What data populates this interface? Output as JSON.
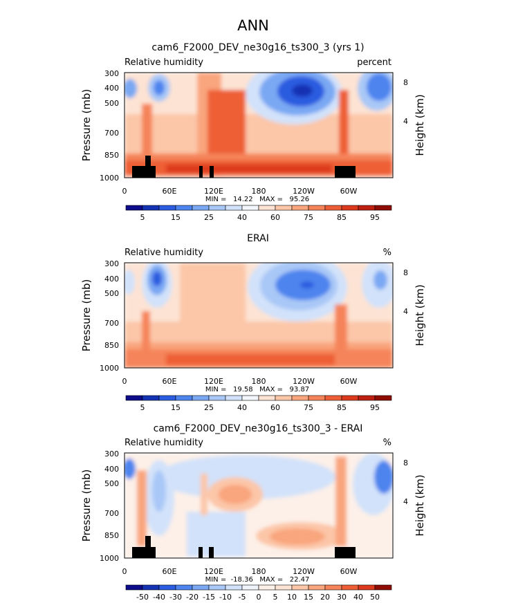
{
  "figure": {
    "title": "ANN"
  },
  "common": {
    "x_ticks": [
      "0",
      "60E",
      "120E",
      "180",
      "120W",
      "60W"
    ],
    "y_ticks": [
      "300",
      "400",
      "500",
      "700",
      "850",
      "1000"
    ],
    "y_label": "Pressure (mb)",
    "height_ticks": [
      "8",
      "4"
    ],
    "height_label": "Height (km)"
  },
  "chart_data": [
    {
      "type": "heatmap",
      "title": "cam6_F2000_DEV_ne30g16_ts300_3 (yrs 1)",
      "left_label": "Relative humidity",
      "right_label": "percent",
      "ylabel": "Pressure (mb)",
      "y2label": "Height (km)",
      "x": [
        "0",
        "60E",
        "120E",
        "180",
        "120W",
        "60W"
      ],
      "ylim": [
        1000,
        300
      ],
      "stats": "MIN =   14.22   MAX =   95.26",
      "min": 14.22,
      "max": 95.26,
      "colorbar_labels": [
        "5",
        "15",
        "25",
        "40",
        "60",
        "75",
        "85",
        "95"
      ]
    },
    {
      "type": "heatmap",
      "title": "ERAI",
      "left_label": "Relative humidity",
      "right_label": "%",
      "ylabel": "Pressure (mb)",
      "y2label": "Height (km)",
      "x": [
        "0",
        "60E",
        "120E",
        "180",
        "120W",
        "60W"
      ],
      "ylim": [
        1000,
        300
      ],
      "stats": "MIN =   19.58   MAX =   93.87",
      "min": 19.58,
      "max": 93.87,
      "colorbar_labels": [
        "5",
        "15",
        "25",
        "40",
        "60",
        "75",
        "85",
        "95"
      ]
    },
    {
      "type": "heatmap",
      "title": "cam6_F2000_DEV_ne30g16_ts300_3 - ERAI",
      "left_label": "Relative humidity",
      "right_label": "%",
      "ylabel": "Pressure (mb)",
      "y2label": "Height (km)",
      "x": [
        "0",
        "60E",
        "120E",
        "180",
        "120W",
        "60W"
      ],
      "ylim": [
        1000,
        300
      ],
      "stats": "MIN =  -18.36   MAX =   22.47",
      "min": -18.36,
      "max": 22.47,
      "colorbar_labels": [
        "-50",
        "-40",
        "-30",
        "-20",
        "-15",
        "-10",
        "-5",
        "0",
        "5",
        "10",
        "15",
        "20",
        "30",
        "40",
        "50"
      ]
    }
  ],
  "colors": {
    "abs_scale": [
      "#0d0d8c",
      "#1433b3",
      "#2c5ce0",
      "#4d84ee",
      "#7aa8f3",
      "#a9c8f7",
      "#d2e2fa",
      "#f3f6fc",
      "#fde3d3",
      "#fcc6a8",
      "#f9a57d",
      "#f5845a",
      "#ee5e36",
      "#dd3a1d",
      "#bd2010",
      "#8f0c05"
    ],
    "diff_scale": [
      "#0d0d8c",
      "#1433b3",
      "#2c5ce0",
      "#4d84ee",
      "#7aa8f3",
      "#a9c8f7",
      "#d2e2fa",
      "#eef3fc",
      "#fdf0e8",
      "#fde3d3",
      "#fcc6a8",
      "#f9a57d",
      "#f5845a",
      "#ee5e36",
      "#dd3a1d",
      "#8f0c05"
    ],
    "land": "#000000"
  }
}
